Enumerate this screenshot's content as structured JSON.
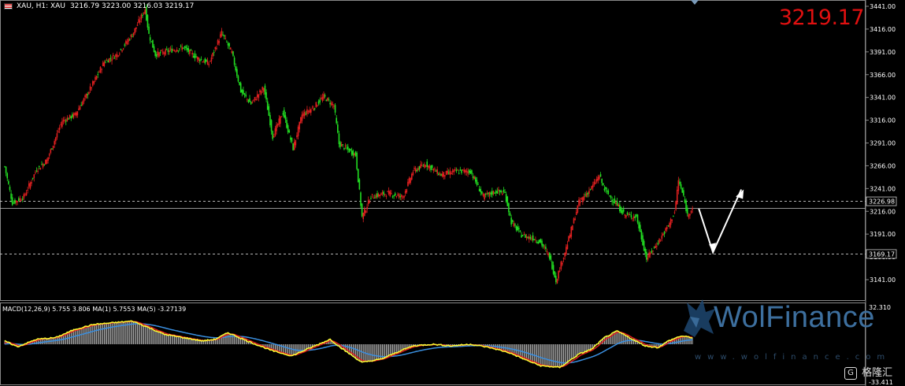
{
  "header": {
    "symbol_line": "XAU, H1:  XAU",
    "ohlc": "3216.79 3223.00 3216.03 3219.17"
  },
  "current_price_big": "3219.17",
  "price_axis": {
    "ticks": [
      "3441.00",
      "3416.00",
      "3391.00",
      "3366.00",
      "3341.00",
      "3316.00",
      "3291.00",
      "3266.00",
      "3241.00",
      "3216.00",
      "3191.00",
      "3166.00",
      "3141.00"
    ],
    "tick_values": [
      3441,
      3416,
      3391,
      3366,
      3341,
      3316,
      3291,
      3266,
      3241,
      3216,
      3191,
      3166,
      3141
    ],
    "label_3226": "3226.98",
    "label_3169": "3169.17",
    "label_3219": "3219.17"
  },
  "macd_header": "MACD(12,26,9) 5.755 3.806 MA(1) 5.7553 MA(5) -3.27139",
  "macd_axis": {
    "top": "32.310",
    "bottom": "-33.411"
  },
  "watermark": {
    "brand": "WolFinance",
    "url": "www.wolfinance.com"
  },
  "corner_logo": {
    "text": "格隆汇",
    "glyph": "G"
  },
  "colors": {
    "up": "#e02020",
    "down": "#22dd22",
    "macd_fast": "#ffff33",
    "macd_slow": "#e02020",
    "macd_ma": "#3a8fe0",
    "arrow": "#ffffff",
    "big_price": "#e01010"
  },
  "chart_data": {
    "type": "candlestick",
    "symbol": "XAU",
    "timeframe": "H1",
    "ylim": [
      3130,
      3450
    ],
    "horizontal_levels": [
      3226.98,
      3219.17,
      3169.17
    ],
    "price_path_anchors": [
      [
        0,
        3265
      ],
      [
        6,
        3225
      ],
      [
        15,
        3232
      ],
      [
        25,
        3262
      ],
      [
        33,
        3272
      ],
      [
        45,
        3315
      ],
      [
        55,
        3322
      ],
      [
        66,
        3348
      ],
      [
        78,
        3380
      ],
      [
        88,
        3388
      ],
      [
        100,
        3410
      ],
      [
        110,
        3438
      ],
      [
        113,
        3410
      ],
      [
        118,
        3388
      ],
      [
        128,
        3392
      ],
      [
        140,
        3396
      ],
      [
        150,
        3385
      ],
      [
        160,
        3378
      ],
      [
        170,
        3412
      ],
      [
        178,
        3390
      ],
      [
        185,
        3348
      ],
      [
        193,
        3334
      ],
      [
        203,
        3352
      ],
      [
        210,
        3298
      ],
      [
        218,
        3325
      ],
      [
        226,
        3285
      ],
      [
        233,
        3322
      ],
      [
        242,
        3330
      ],
      [
        250,
        3342
      ],
      [
        258,
        3332
      ],
      [
        262,
        3290
      ],
      [
        275,
        3278
      ],
      [
        280,
        3210
      ],
      [
        287,
        3232
      ],
      [
        300,
        3236
      ],
      [
        312,
        3232
      ],
      [
        320,
        3260
      ],
      [
        330,
        3268
      ],
      [
        342,
        3256
      ],
      [
        353,
        3260
      ],
      [
        365,
        3260
      ],
      [
        375,
        3232
      ],
      [
        385,
        3238
      ],
      [
        392,
        3236
      ],
      [
        397,
        3204
      ],
      [
        405,
        3190
      ],
      [
        415,
        3186
      ],
      [
        420,
        3182
      ],
      [
        427,
        3166
      ],
      [
        432,
        3140
      ],
      [
        440,
        3176
      ],
      [
        450,
        3226
      ],
      [
        460,
        3242
      ],
      [
        466,
        3255
      ],
      [
        470,
        3240
      ],
      [
        478,
        3226
      ],
      [
        486,
        3212
      ],
      [
        495,
        3210
      ],
      [
        503,
        3164
      ],
      [
        512,
        3182
      ],
      [
        520,
        3200
      ],
      [
        525,
        3215
      ],
      [
        528,
        3250
      ],
      [
        532,
        3232
      ],
      [
        535,
        3212
      ],
      [
        539,
        3220
      ]
    ],
    "macd_path_anchors": [
      [
        0,
        4
      ],
      [
        10,
        -3
      ],
      [
        25,
        6
      ],
      [
        40,
        8
      ],
      [
        55,
        18
      ],
      [
        70,
        24
      ],
      [
        85,
        26
      ],
      [
        100,
        28
      ],
      [
        110,
        22
      ],
      [
        125,
        12
      ],
      [
        140,
        8
      ],
      [
        155,
        4
      ],
      [
        165,
        6
      ],
      [
        175,
        14
      ],
      [
        190,
        4
      ],
      [
        210,
        -8
      ],
      [
        225,
        -14
      ],
      [
        240,
        -4
      ],
      [
        255,
        6
      ],
      [
        265,
        -6
      ],
      [
        280,
        -22
      ],
      [
        295,
        -18
      ],
      [
        310,
        -8
      ],
      [
        320,
        -2
      ],
      [
        335,
        0
      ],
      [
        350,
        -2
      ],
      [
        365,
        0
      ],
      [
        380,
        -4
      ],
      [
        395,
        -10
      ],
      [
        410,
        -20
      ],
      [
        420,
        -26
      ],
      [
        435,
        -28
      ],
      [
        450,
        -12
      ],
      [
        460,
        -6
      ],
      [
        470,
        8
      ],
      [
        480,
        16
      ],
      [
        492,
        6
      ],
      [
        502,
        -2
      ],
      [
        512,
        -4
      ],
      [
        520,
        4
      ],
      [
        530,
        10
      ],
      [
        539,
        8
      ]
    ],
    "projection": {
      "down_to": 3171,
      "up_to": 3240
    }
  }
}
